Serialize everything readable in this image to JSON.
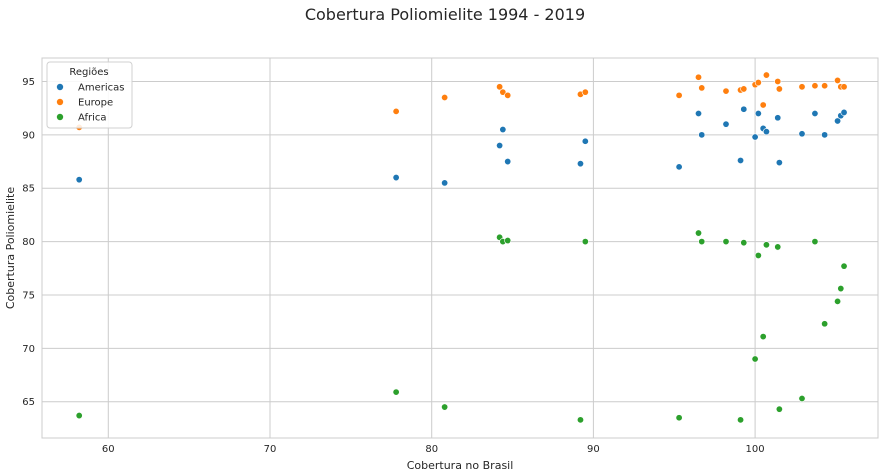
{
  "chart_data": {
    "type": "scatter",
    "title": "Cobertura Poliomielite 1994 - 2019",
    "xlabel": "Cobertura no Brasil",
    "ylabel": "Cobertura Poliomielite",
    "xlim": [
      55.9,
      107.6
    ],
    "ylim": [
      61.6,
      97.2
    ],
    "xticks": [
      60,
      70,
      80,
      90,
      100
    ],
    "yticks": [
      65,
      70,
      75,
      80,
      85,
      90,
      95
    ],
    "grid": true,
    "legend": {
      "title": "Regiões",
      "placement": "top-left"
    },
    "series": [
      {
        "name": "Americas",
        "color": "#1f77b4",
        "points": [
          [
            58.2,
            85.8
          ],
          [
            77.8,
            86.0
          ],
          [
            80.8,
            85.5
          ],
          [
            84.2,
            89.0
          ],
          [
            84.4,
            90.5
          ],
          [
            84.7,
            87.5
          ],
          [
            89.2,
            87.3
          ],
          [
            89.5,
            89.4
          ],
          [
            95.3,
            87.0
          ],
          [
            96.5,
            92.0
          ],
          [
            96.7,
            90.0
          ],
          [
            98.2,
            91.0
          ],
          [
            99.1,
            87.6
          ],
          [
            99.3,
            92.4
          ],
          [
            100.0,
            89.8
          ],
          [
            100.2,
            92.0
          ],
          [
            100.5,
            90.6
          ],
          [
            100.7,
            90.3
          ],
          [
            101.4,
            91.6
          ],
          [
            101.5,
            87.4
          ],
          [
            102.9,
            90.1
          ],
          [
            103.7,
            92.0
          ],
          [
            104.3,
            90.0
          ],
          [
            105.1,
            91.3
          ],
          [
            105.3,
            91.8
          ],
          [
            105.5,
            92.1
          ]
        ]
      },
      {
        "name": "Europe",
        "color": "#ff7f0e",
        "points": [
          [
            58.2,
            90.7
          ],
          [
            77.8,
            92.2
          ],
          [
            80.8,
            93.5
          ],
          [
            84.2,
            94.5
          ],
          [
            84.4,
            94.0
          ],
          [
            84.7,
            93.7
          ],
          [
            89.2,
            93.8
          ],
          [
            89.5,
            94.0
          ],
          [
            95.3,
            93.7
          ],
          [
            96.5,
            95.4
          ],
          [
            96.7,
            94.4
          ],
          [
            98.2,
            94.1
          ],
          [
            99.1,
            94.2
          ],
          [
            99.3,
            94.3
          ],
          [
            100.0,
            94.7
          ],
          [
            100.2,
            94.9
          ],
          [
            100.5,
            92.8
          ],
          [
            100.7,
            95.6
          ],
          [
            101.4,
            95.0
          ],
          [
            101.5,
            94.3
          ],
          [
            102.9,
            94.5
          ],
          [
            103.7,
            94.6
          ],
          [
            104.3,
            94.6
          ],
          [
            105.1,
            95.1
          ],
          [
            105.3,
            94.5
          ],
          [
            105.5,
            94.5
          ]
        ]
      },
      {
        "name": "Africa",
        "color": "#2ca02c",
        "points": [
          [
            58.2,
            63.7
          ],
          [
            77.8,
            65.9
          ],
          [
            80.8,
            64.5
          ],
          [
            84.2,
            80.4
          ],
          [
            84.4,
            80.0
          ],
          [
            84.7,
            80.1
          ],
          [
            89.2,
            63.3
          ],
          [
            89.5,
            80.0
          ],
          [
            95.3,
            63.5
          ],
          [
            96.5,
            80.8
          ],
          [
            96.7,
            80.0
          ],
          [
            98.2,
            80.0
          ],
          [
            99.1,
            63.3
          ],
          [
            99.3,
            79.9
          ],
          [
            100.0,
            69.0
          ],
          [
            100.2,
            78.7
          ],
          [
            100.5,
            71.1
          ],
          [
            100.7,
            79.7
          ],
          [
            101.4,
            79.5
          ],
          [
            101.5,
            64.3
          ],
          [
            102.9,
            65.3
          ],
          [
            103.7,
            80.0
          ],
          [
            104.3,
            72.3
          ],
          [
            105.1,
            74.4
          ],
          [
            105.3,
            75.6
          ],
          [
            105.5,
            77.7
          ]
        ]
      }
    ]
  }
}
